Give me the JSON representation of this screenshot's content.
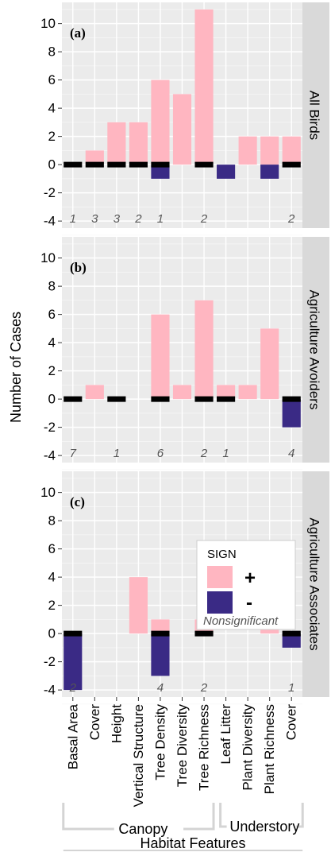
{
  "chart_data": {
    "type": "bar",
    "ylabel": "Number of Cases",
    "xlabel": "Habitat Features",
    "ylim": [
      -4.5,
      11.5
    ],
    "yticks": [
      -4,
      -2,
      0,
      2,
      4,
      6,
      8,
      10
    ],
    "grid": true,
    "categories": [
      "Basal Area",
      "Cover",
      "Height",
      "Vertical Structure",
      "Tree Density",
      "Tree Diversity",
      "Tree Richness",
      "Leaf Litter",
      "Plant Diversity",
      "Plant Richness",
      "Cover"
    ],
    "groups": [
      {
        "name": "Canopy",
        "from": 0,
        "to": 6
      },
      {
        "name": "Understory",
        "from": 7,
        "to": 10
      }
    ],
    "legend": {
      "title": "SIGN",
      "items": [
        {
          "label": "+",
          "color": "#ffb6c1"
        },
        {
          "label": "-",
          "color": "#3a2a85"
        }
      ],
      "nonsig_label": "Nonsignificant",
      "placement": "panel (c), upper right"
    },
    "colors": {
      "positive": "#ffb6c1",
      "negative": "#3a2a85",
      "nonsignificant": "#000000"
    },
    "panels": [
      {
        "label": "(a)",
        "strip": "All Birds",
        "positive": [
          0,
          1,
          3,
          3,
          6,
          5,
          11,
          0,
          2,
          2,
          2
        ],
        "negative": [
          0,
          0,
          0,
          0,
          -1,
          0,
          0,
          -1,
          0,
          -1,
          0
        ],
        "nonsignificant": [
          "1",
          "3",
          "3",
          "2",
          "1",
          "",
          "2",
          "",
          "",
          "",
          "2"
        ]
      },
      {
        "label": "(b)",
        "strip": "Agriculture Avoiders",
        "positive": [
          0,
          1,
          0,
          0,
          6,
          1,
          7,
          1,
          1,
          5,
          0
        ],
        "negative": [
          0,
          0,
          0,
          0,
          0,
          0,
          0,
          0,
          0,
          0,
          -2
        ],
        "nonsignificant": [
          "7",
          "",
          "1",
          "",
          "6",
          "",
          "2",
          "1",
          "",
          "",
          "4"
        ]
      },
      {
        "label": "(c)",
        "strip": "Agriculture Associates",
        "positive": [
          0,
          0,
          0,
          4,
          1,
          0,
          1,
          0,
          0,
          1,
          0
        ],
        "negative": [
          -4,
          0,
          0,
          0,
          -3,
          0,
          0,
          0,
          0,
          0,
          -1
        ],
        "nonsignificant": [
          "2",
          "",
          "",
          "",
          "4",
          "",
          "2",
          "",
          "",
          "",
          "1"
        ]
      }
    ]
  }
}
